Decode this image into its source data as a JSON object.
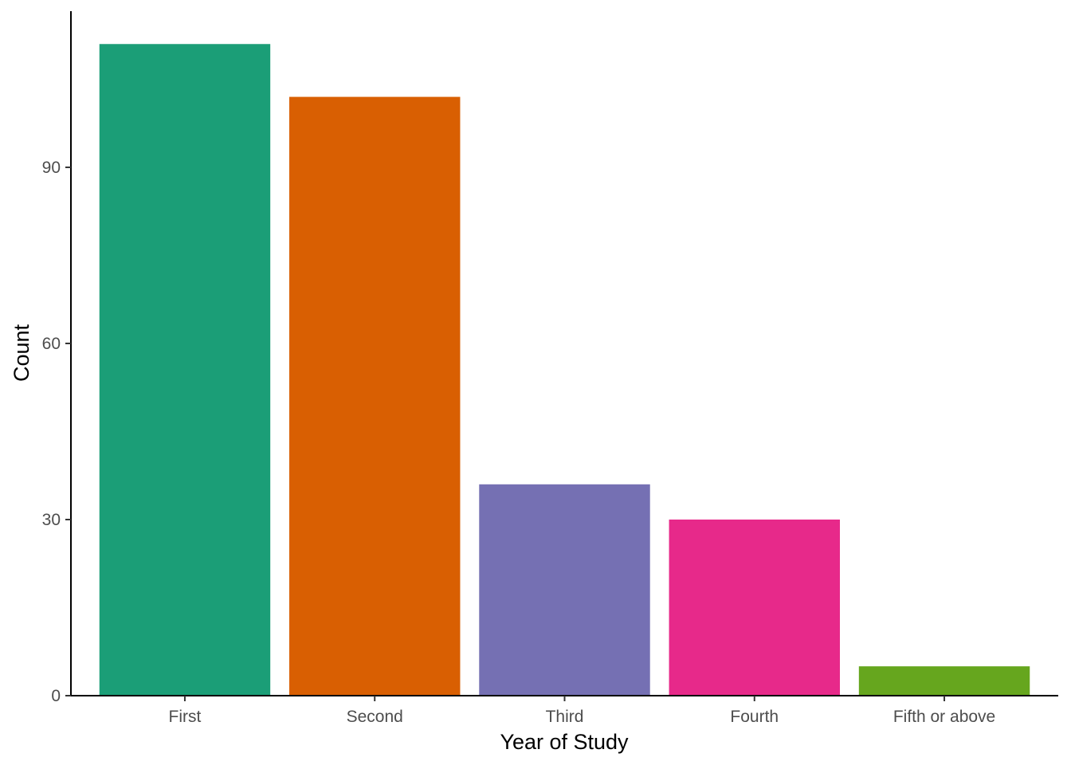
{
  "chart_data": {
    "type": "bar",
    "categories": [
      "First",
      "Second",
      "Third",
      "Fourth",
      "Fifth or above"
    ],
    "values": [
      111,
      102,
      36,
      30,
      5
    ],
    "colors": [
      "#1b9e77",
      "#d95f02",
      "#7570b3",
      "#e7298a",
      "#66a61e"
    ],
    "title": "",
    "xlabel": "Year of Study",
    "ylabel": "Count",
    "ylim": [
      0,
      116.6
    ],
    "yticks": [
      0,
      30,
      60,
      90
    ],
    "grid": false,
    "legend": "none"
  }
}
